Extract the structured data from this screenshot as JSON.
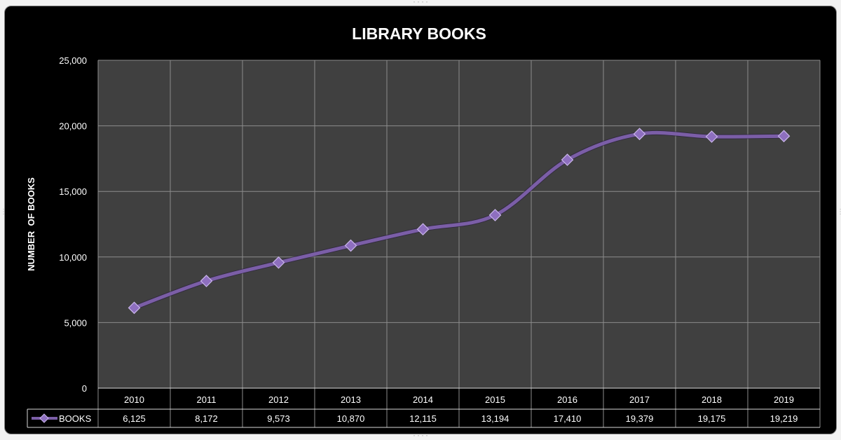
{
  "chart_data": {
    "type": "line",
    "title": "LIBRARY BOOKS",
    "ylabel": "NUMBER  OF BOOKS",
    "xlabel": "",
    "ylim": [
      0,
      25000
    ],
    "yticks": [
      "0",
      "5,000",
      "10,000",
      "15,000",
      "20,000",
      "25,000"
    ],
    "categories": [
      "2010",
      "2011",
      "2012",
      "2013",
      "2014",
      "2015",
      "2016",
      "2017",
      "2018",
      "2019"
    ],
    "series": [
      {
        "name": "BOOKS",
        "values": [
          6125,
          8172,
          9573,
          10870,
          12115,
          13194,
          17410,
          19379,
          19175,
          19219
        ],
        "value_labels": [
          "6,125",
          "8,172",
          "9,573",
          "10,870",
          "12,115",
          "13,194",
          "17,410",
          "19,379",
          "19,175",
          "19,219"
        ],
        "color": "#7b5ea7"
      }
    ],
    "grid": true,
    "legend": "data-table-left",
    "smoothed": true
  },
  "colors": {
    "background": "#000000",
    "plot_area": "#404040",
    "gridline": "#8c8c8c",
    "text": "#ffffff"
  }
}
